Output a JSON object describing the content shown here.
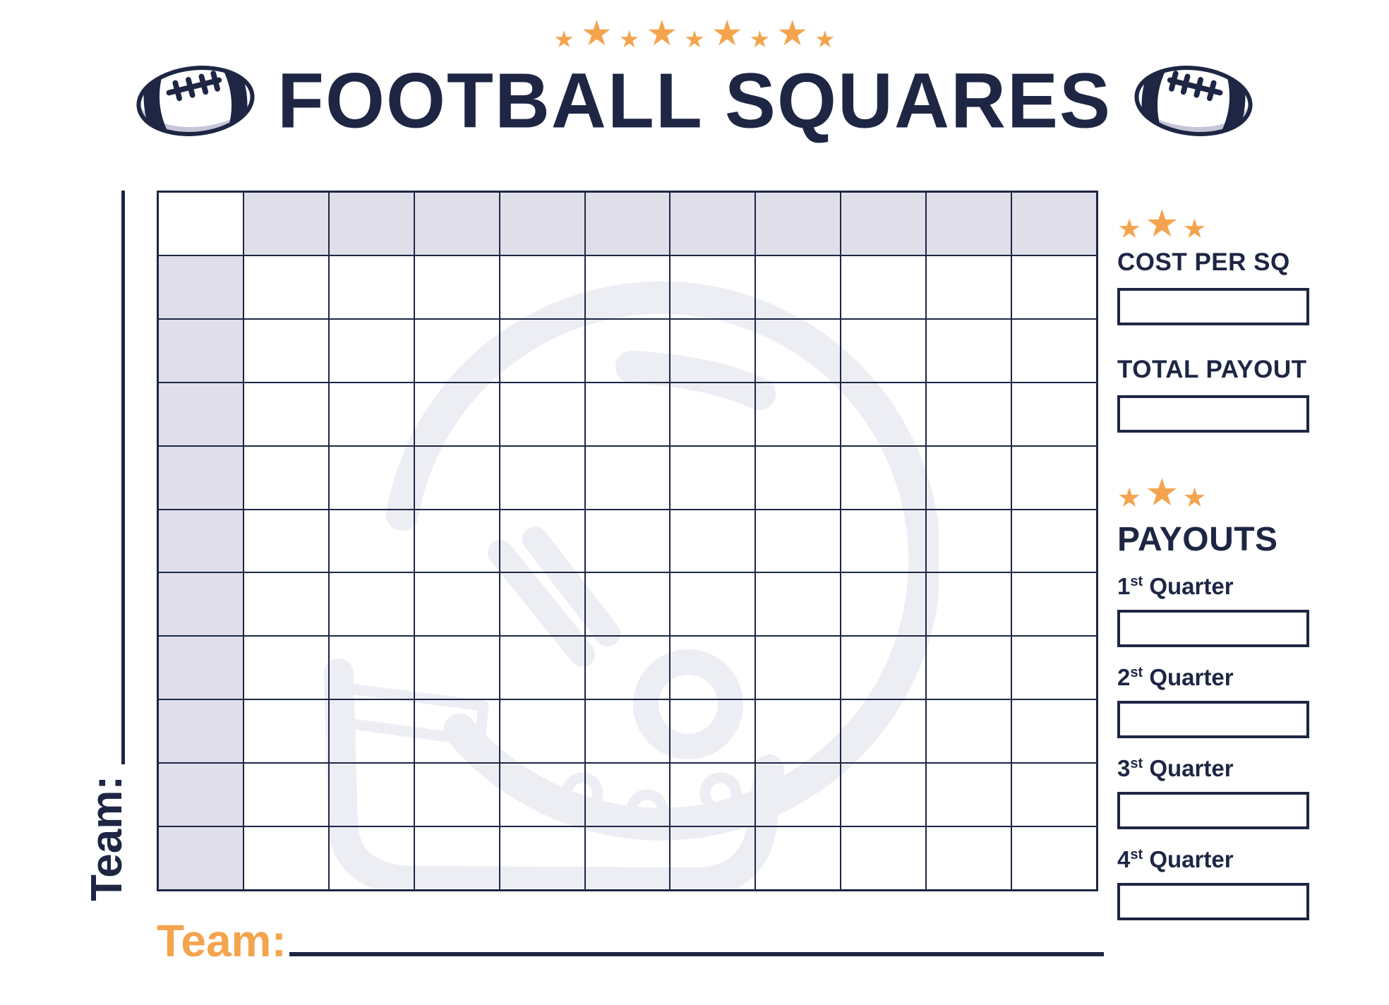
{
  "title": "FOOTBALL SQUARES",
  "decor": {
    "star_glyph": "★",
    "header_stars": [
      "sm",
      "lg",
      "sm",
      "lg",
      "sm",
      "lg",
      "sm",
      "lg",
      "sm"
    ],
    "cost_stars": [
      "sm",
      "lg",
      "sm"
    ],
    "payout_stars": [
      "sm",
      "lg",
      "sm"
    ]
  },
  "grid": {
    "rows": 11,
    "cols": 11
  },
  "sidebar": {
    "cost_per_sq": {
      "label": "COST PER SQ",
      "value": ""
    },
    "total_payout": {
      "label": "TOTAL PAYOUT",
      "value": ""
    },
    "payouts_title": "PAYOUTS",
    "quarters": [
      {
        "ordinal": "1",
        "suffix": "st",
        "word": "Quarter",
        "value": ""
      },
      {
        "ordinal": "2",
        "suffix": "st",
        "word": "Quarter",
        "value": ""
      },
      {
        "ordinal": "3",
        "suffix": "st",
        "word": "Quarter",
        "value": ""
      },
      {
        "ordinal": "4",
        "suffix": "st",
        "word": "Quarter",
        "value": ""
      }
    ]
  },
  "team_left": {
    "label": "Team:",
    "value": ""
  },
  "team_bottom": {
    "label": "Team:",
    "value": ""
  },
  "colors": {
    "navy": "#1e2644",
    "orange": "#f4a44e",
    "cell_shade": "#dfdee9",
    "watermark": "#ededf4"
  }
}
